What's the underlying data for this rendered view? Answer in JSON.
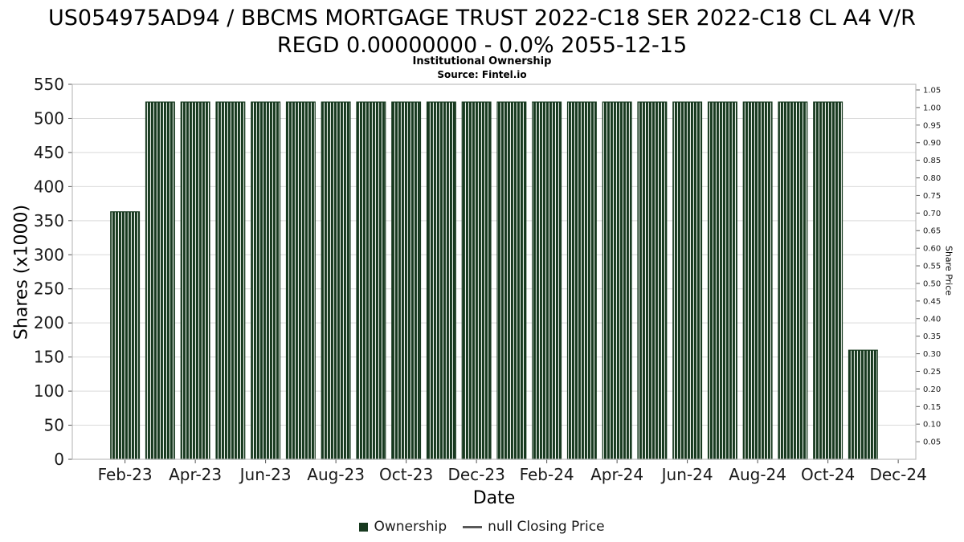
{
  "header": {
    "title_line1": "US054975AD94 / BBCMS MORTGAGE TRUST 2022-C18 SER 2022-C18 CL A4 V/R",
    "title_line2": "REGD 0.00000000 - 0.0% 2055-12-15",
    "subtitle": "Institutional Ownership",
    "source": "Source: Fintel.io"
  },
  "chart_data": {
    "type": "bar",
    "title": "Institutional Ownership",
    "subtitle": "Source: Fintel.io",
    "xlabel": "Date",
    "ylabel_left": "Shares (x1000)",
    "ylabel_right": "Share Price",
    "categories": [
      "Feb-23",
      "Mar-23",
      "Apr-23",
      "May-23",
      "Jun-23",
      "Jul-23",
      "Aug-23",
      "Sep-23",
      "Oct-23",
      "Nov-23",
      "Dec-23",
      "Jan-24",
      "Feb-24",
      "Mar-24",
      "Apr-24",
      "May-24",
      "Jun-24",
      "Jul-24",
      "Aug-24",
      "Sep-24",
      "Oct-24",
      "Nov-24"
    ],
    "values": [
      363,
      524,
      524,
      524,
      524,
      524,
      524,
      524,
      524,
      524,
      524,
      524,
      524,
      524,
      524,
      524,
      524,
      524,
      524,
      524,
      524,
      160
    ],
    "series_name": "Ownership",
    "left_axis": {
      "min": 0,
      "max": 550,
      "step": 50,
      "tick_labels": [
        "0",
        "50",
        "100",
        "150",
        "200",
        "250",
        "300",
        "350",
        "400",
        "450",
        "500",
        "550"
      ]
    },
    "right_axis": {
      "min": 0.05,
      "max": 1.05,
      "step": 0.05,
      "tick_labels": [
        "0.05",
        "0.10",
        "0.15",
        "0.20",
        "0.25",
        "0.30",
        "0.35",
        "0.40",
        "0.45",
        "0.50",
        "0.55",
        "0.60",
        "0.65",
        "0.70",
        "0.75",
        "0.80",
        "0.85",
        "0.90",
        "0.95",
        "1.00",
        "1.05"
      ]
    },
    "x_axis": {
      "start": "Jan-23",
      "slots": 24,
      "tick_labels": [
        "Feb-23",
        "Apr-23",
        "Jun-23",
        "Aug-23",
        "Oct-23",
        "Dec-23",
        "Feb-24",
        "Apr-24",
        "Jun-24",
        "Aug-24",
        "Oct-24",
        "Dec-24"
      ]
    },
    "grid": "horizontal",
    "legend_position": "bottom-center",
    "legend": [
      {
        "label": "Ownership",
        "marker": "square"
      },
      {
        "label": "null Closing Price",
        "marker": "line"
      }
    ],
    "colors": {
      "bar": "#17391f",
      "bar_hatch_light": "#e9efe9",
      "grid": "#d9d9d9",
      "border": "#bdbdbd",
      "tick": "#555555",
      "legend_line": "#595959",
      "text": "#1a1a1a"
    }
  }
}
